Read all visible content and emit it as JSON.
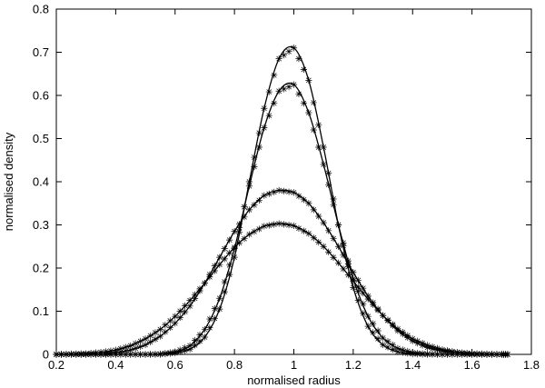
{
  "chart_data": {
    "type": "line",
    "title": "",
    "xlabel": "normalised radius",
    "ylabel": "normalised density",
    "xlim": [
      0.2,
      1.8
    ],
    "ylim": [
      0,
      0.8
    ],
    "xticks": [
      "0.2",
      "0.4",
      "0.6",
      "0.8",
      "1",
      "1.2",
      "1.4",
      "1.6",
      "1.8"
    ],
    "yticks": [
      "0",
      "0.1",
      "0.2",
      "0.3",
      "0.4",
      "0.5",
      "0.6",
      "0.7",
      "0.8"
    ],
    "grid": false,
    "legend": "none",
    "series": [
      {
        "x": [
          0.2,
          0.25,
          0.3,
          0.35,
          0.4,
          0.45,
          0.5,
          0.55,
          0.6,
          0.65,
          0.7,
          0.75,
          0.8,
          0.85,
          0.9,
          0.95,
          1.0,
          1.05,
          1.1,
          1.15,
          1.2,
          1.25,
          1.3,
          1.35,
          1.4,
          1.45,
          1.5,
          1.55,
          1.6,
          1.65,
          1.7,
          1.72
        ],
        "y": [
          0.0,
          0.0,
          0.0,
          0.0,
          0.0,
          0.0,
          0.0,
          0.0,
          0.003,
          0.012,
          0.04,
          0.105,
          0.225,
          0.4,
          0.57,
          0.685,
          0.71,
          0.635,
          0.48,
          0.3,
          0.155,
          0.065,
          0.022,
          0.006,
          0.001,
          0.0,
          0.0,
          0.0,
          0.0,
          0.0,
          0.0,
          0.0
        ]
      },
      {
        "x": [
          0.2,
          0.25,
          0.3,
          0.35,
          0.4,
          0.45,
          0.5,
          0.55,
          0.6,
          0.65,
          0.7,
          0.75,
          0.8,
          0.85,
          0.9,
          0.95,
          1.0,
          1.05,
          1.1,
          1.15,
          1.2,
          1.25,
          1.3,
          1.35,
          1.4,
          1.45,
          1.5,
          1.55,
          1.6,
          1.65,
          1.7,
          1.72
        ],
        "y": [
          0.0,
          0.0,
          0.0,
          0.0,
          0.0,
          0.0,
          0.0,
          0.001,
          0.006,
          0.02,
          0.058,
          0.13,
          0.245,
          0.39,
          0.525,
          0.61,
          0.625,
          0.56,
          0.44,
          0.3,
          0.175,
          0.088,
          0.038,
          0.014,
          0.004,
          0.001,
          0.0,
          0.0,
          0.0,
          0.0,
          0.0,
          0.0
        ]
      },
      {
        "x": [
          0.2,
          0.25,
          0.3,
          0.35,
          0.4,
          0.45,
          0.5,
          0.55,
          0.6,
          0.65,
          0.7,
          0.75,
          0.8,
          0.85,
          0.9,
          0.95,
          1.0,
          1.05,
          1.1,
          1.15,
          1.2,
          1.25,
          1.3,
          1.35,
          1.4,
          1.45,
          1.5,
          1.55,
          1.6,
          1.65,
          1.7,
          1.72
        ],
        "y": [
          0.0,
          0.0,
          0.0,
          0.001,
          0.004,
          0.01,
          0.022,
          0.042,
          0.072,
          0.112,
          0.165,
          0.225,
          0.285,
          0.335,
          0.368,
          0.38,
          0.375,
          0.35,
          0.305,
          0.25,
          0.19,
          0.135,
          0.09,
          0.055,
          0.031,
          0.016,
          0.008,
          0.004,
          0.001,
          0.0,
          0.0,
          0.0
        ]
      },
      {
        "x": [
          0.2,
          0.25,
          0.3,
          0.35,
          0.4,
          0.45,
          0.5,
          0.55,
          0.6,
          0.65,
          0.7,
          0.75,
          0.8,
          0.85,
          0.9,
          0.95,
          1.0,
          1.05,
          1.1,
          1.15,
          1.2,
          1.25,
          1.3,
          1.35,
          1.4,
          1.45,
          1.5,
          1.55,
          1.6,
          1.65,
          1.7,
          1.72
        ],
        "y": [
          0.0,
          0.001,
          0.002,
          0.005,
          0.01,
          0.02,
          0.036,
          0.058,
          0.088,
          0.125,
          0.165,
          0.208,
          0.248,
          0.278,
          0.297,
          0.303,
          0.298,
          0.28,
          0.25,
          0.212,
          0.17,
          0.128,
          0.09,
          0.059,
          0.036,
          0.021,
          0.011,
          0.005,
          0.002,
          0.001,
          0.0,
          0.0
        ]
      }
    ]
  }
}
